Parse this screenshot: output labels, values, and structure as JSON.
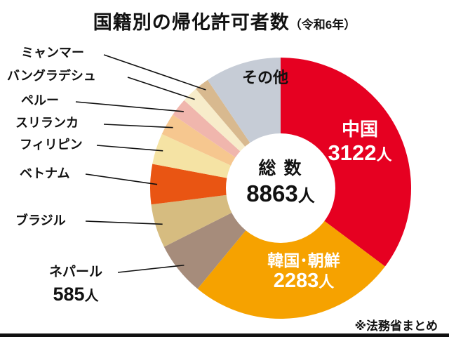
{
  "title": {
    "main": "国籍別の帰化許可者数",
    "year": "（令和6年）"
  },
  "center": {
    "label": "総 数",
    "value": "8863",
    "unit": "人"
  },
  "source": "※法務省まとめ",
  "annotations": {
    "china": {
      "name": "中国",
      "value": "3122",
      "unit": "人"
    },
    "korea": {
      "name": "韓国･朝鮮",
      "value": "2283",
      "unit": "人"
    },
    "nepal": {
      "name": "ネパール",
      "value": "585",
      "unit": "人"
    },
    "others": {
      "name": "その他"
    },
    "left_labels": [
      "ミャンマー",
      "バングラデシュ",
      "ペルー",
      "スリランカ",
      "フィリピン",
      "ベトナム",
      "ブラジル"
    ]
  },
  "chart_data": {
    "type": "pie",
    "title": "国籍別の帰化許可者数（令和6年）",
    "total": 8863,
    "start_angle_deg": 0,
    "direction": "clockwise",
    "donut_hole": true,
    "segments": [
      {
        "label": "中国",
        "value": 3122,
        "color": "#e60021",
        "labeled_value": true
      },
      {
        "label": "韓国･朝鮮",
        "value": 2283,
        "color": "#f6a200",
        "labeled_value": true
      },
      {
        "label": "ネパール",
        "value": 585,
        "color": "#a68c7b",
        "labeled_value": true
      },
      {
        "label": "ブラジル",
        "value": 480,
        "color": "#d6bc80",
        "labeled_value": false
      },
      {
        "label": "ベトナム",
        "value": 440,
        "color": "#e95513",
        "labeled_value": false
      },
      {
        "label": "フィリピン",
        "value": 340,
        "color": "#f5e3a4",
        "labeled_value": false
      },
      {
        "label": "スリランカ",
        "value": 240,
        "color": "#f6c78f",
        "labeled_value": false
      },
      {
        "label": "ペルー",
        "value": 200,
        "color": "#f0b6ad",
        "labeled_value": false
      },
      {
        "label": "バングラデシュ",
        "value": 175,
        "color": "#f7ecca",
        "labeled_value": false
      },
      {
        "label": "ミャンマー",
        "value": 160,
        "color": "#d8b98f",
        "labeled_value": false
      },
      {
        "label": "その他",
        "value": 838,
        "color": "#c6ccd6",
        "labeled_value": false
      }
    ]
  }
}
